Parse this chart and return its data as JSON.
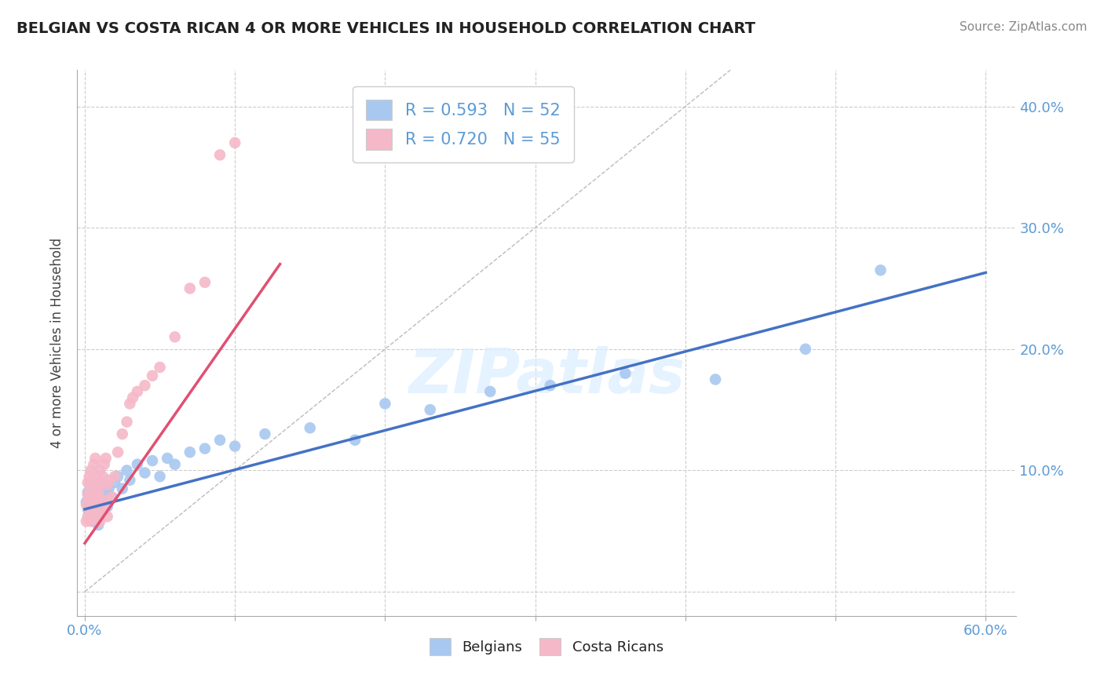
{
  "title": "BELGIAN VS COSTA RICAN 4 OR MORE VEHICLES IN HOUSEHOLD CORRELATION CHART",
  "source": "Source: ZipAtlas.com",
  "xlabel": "",
  "ylabel": "4 or more Vehicles in Household",
  "xlim": [
    -0.005,
    0.62
  ],
  "ylim": [
    -0.02,
    0.43
  ],
  "xticks": [
    0.0,
    0.1,
    0.2,
    0.3,
    0.4,
    0.5,
    0.6
  ],
  "yticks": [
    0.0,
    0.1,
    0.2,
    0.3,
    0.4
  ],
  "xticklabels": [
    "0.0%",
    "",
    "",
    "",
    "",
    "",
    "60.0%"
  ],
  "yticklabels": [
    "",
    "10.0%",
    "20.0%",
    "30.0%",
    "40.0%"
  ],
  "belgian_R": 0.593,
  "belgian_N": 52,
  "costarican_R": 0.72,
  "costarican_N": 55,
  "belgian_color": "#a8c8f0",
  "costarican_color": "#f5b8c8",
  "belgian_line_color": "#4472c4",
  "costarican_line_color": "#e05070",
  "watermark_text": "ZIPatlas",
  "background_color": "#ffffff",
  "grid_color": "#cccccc",
  "tick_color": "#5b9bd5",
  "title_color": "#222222",
  "source_color": "#888888",
  "belgian_scatter": [
    [
      0.001,
      0.074
    ],
    [
      0.002,
      0.068
    ],
    [
      0.002,
      0.082
    ],
    [
      0.003,
      0.065
    ],
    [
      0.003,
      0.078
    ],
    [
      0.004,
      0.06
    ],
    [
      0.004,
      0.09
    ],
    [
      0.005,
      0.072
    ],
    [
      0.005,
      0.08
    ],
    [
      0.006,
      0.058
    ],
    [
      0.006,
      0.086
    ],
    [
      0.007,
      0.062
    ],
    [
      0.007,
      0.075
    ],
    [
      0.008,
      0.069
    ],
    [
      0.008,
      0.083
    ],
    [
      0.009,
      0.055
    ],
    [
      0.009,
      0.079
    ],
    [
      0.01,
      0.065
    ],
    [
      0.01,
      0.088
    ],
    [
      0.011,
      0.072
    ],
    [
      0.012,
      0.068
    ],
    [
      0.013,
      0.076
    ],
    [
      0.014,
      0.082
    ],
    [
      0.015,
      0.07
    ],
    [
      0.016,
      0.085
    ],
    [
      0.018,
      0.078
    ],
    [
      0.02,
      0.09
    ],
    [
      0.022,
      0.095
    ],
    [
      0.025,
      0.085
    ],
    [
      0.028,
      0.1
    ],
    [
      0.03,
      0.092
    ],
    [
      0.035,
      0.105
    ],
    [
      0.04,
      0.098
    ],
    [
      0.045,
      0.108
    ],
    [
      0.05,
      0.095
    ],
    [
      0.055,
      0.11
    ],
    [
      0.06,
      0.105
    ],
    [
      0.07,
      0.115
    ],
    [
      0.08,
      0.118
    ],
    [
      0.09,
      0.125
    ],
    [
      0.1,
      0.12
    ],
    [
      0.12,
      0.13
    ],
    [
      0.15,
      0.135
    ],
    [
      0.18,
      0.125
    ],
    [
      0.2,
      0.155
    ],
    [
      0.23,
      0.15
    ],
    [
      0.27,
      0.165
    ],
    [
      0.31,
      0.17
    ],
    [
      0.36,
      0.18
    ],
    [
      0.42,
      0.175
    ],
    [
      0.48,
      0.2
    ],
    [
      0.53,
      0.265
    ]
  ],
  "costarican_scatter": [
    [
      0.001,
      0.058
    ],
    [
      0.001,
      0.072
    ],
    [
      0.002,
      0.062
    ],
    [
      0.002,
      0.08
    ],
    [
      0.002,
      0.09
    ],
    [
      0.003,
      0.068
    ],
    [
      0.003,
      0.078
    ],
    [
      0.003,
      0.095
    ],
    [
      0.004,
      0.058
    ],
    [
      0.004,
      0.085
    ],
    [
      0.004,
      0.1
    ],
    [
      0.005,
      0.065
    ],
    [
      0.005,
      0.082
    ],
    [
      0.005,
      0.092
    ],
    [
      0.006,
      0.06
    ],
    [
      0.006,
      0.075
    ],
    [
      0.006,
      0.105
    ],
    [
      0.007,
      0.068
    ],
    [
      0.007,
      0.088
    ],
    [
      0.007,
      0.11
    ],
    [
      0.008,
      0.062
    ],
    [
      0.008,
      0.08
    ],
    [
      0.008,
      0.095
    ],
    [
      0.009,
      0.07
    ],
    [
      0.009,
      0.085
    ],
    [
      0.01,
      0.058
    ],
    [
      0.01,
      0.078
    ],
    [
      0.01,
      0.1
    ],
    [
      0.011,
      0.065
    ],
    [
      0.011,
      0.09
    ],
    [
      0.012,
      0.072
    ],
    [
      0.012,
      0.095
    ],
    [
      0.013,
      0.068
    ],
    [
      0.013,
      0.105
    ],
    [
      0.014,
      0.075
    ],
    [
      0.014,
      0.11
    ],
    [
      0.015,
      0.062
    ],
    [
      0.015,
      0.088
    ],
    [
      0.016,
      0.092
    ],
    [
      0.018,
      0.078
    ],
    [
      0.02,
      0.095
    ],
    [
      0.022,
      0.115
    ],
    [
      0.025,
      0.13
    ],
    [
      0.028,
      0.14
    ],
    [
      0.03,
      0.155
    ],
    [
      0.032,
      0.16
    ],
    [
      0.035,
      0.165
    ],
    [
      0.04,
      0.17
    ],
    [
      0.045,
      0.178
    ],
    [
      0.05,
      0.185
    ],
    [
      0.06,
      0.21
    ],
    [
      0.07,
      0.25
    ],
    [
      0.08,
      0.255
    ],
    [
      0.09,
      0.36
    ],
    [
      0.1,
      0.37
    ]
  ],
  "belgian_line": [
    0.0,
    0.6,
    0.068,
    0.263
  ],
  "costarican_line": [
    0.0,
    0.13,
    0.04,
    0.27
  ]
}
